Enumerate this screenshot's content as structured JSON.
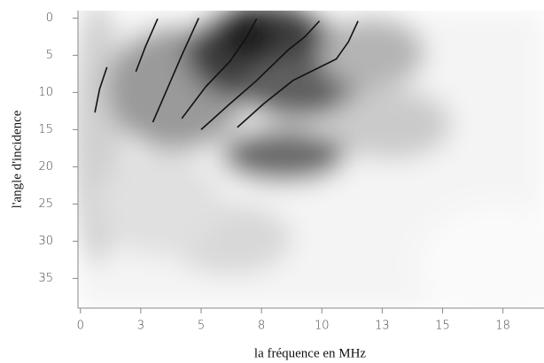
{
  "chart_data": {
    "type": "line",
    "x_label": "la fréquence en MHz",
    "y_label": "l'angle d'incidence",
    "xlim": [
      -0.1,
      19.2
    ],
    "ylim": [
      39,
      -1
    ],
    "xticks": [
      0,
      {
        "value": 2.5,
        "label": "3"
      },
      5,
      {
        "value": 7.5,
        "label": "8"
      },
      10,
      {
        "value": 12.5,
        "label": "13"
      },
      15,
      {
        "value": 17.5,
        "label": "18"
      }
    ],
    "yticks": [
      0,
      5,
      10,
      15,
      20,
      25,
      30,
      35
    ],
    "color": "#111111",
    "series": [
      {
        "x": [
          0.6,
          0.8,
          1.1
        ],
        "values": [
          12.7,
          9.5,
          6.6
        ]
      },
      {
        "x": [
          2.3,
          2.7,
          3.2
        ],
        "values": [
          7.2,
          3.8,
          0.1
        ]
      },
      {
        "x": [
          3.0,
          3.6,
          4.2,
          4.9
        ],
        "values": [
          14,
          9.5,
          5,
          0
        ]
      },
      {
        "x": [
          4.2,
          5.2,
          6.2,
          6.8,
          7.3
        ],
        "values": [
          13.5,
          9.2,
          5.8,
          3,
          0.1
        ]
      },
      {
        "x": [
          5.0,
          6.2,
          7.3,
          8.6,
          9.3,
          9.9
        ],
        "values": [
          15,
          11.5,
          8.4,
          4.3,
          2.5,
          0.4
        ]
      },
      {
        "x": [
          6.5,
          7.6,
          8.8,
          10.6,
          11.1,
          11.5
        ],
        "values": [
          14.7,
          11.5,
          8.4,
          5.5,
          3.2,
          0.4
        ]
      }
    ]
  }
}
